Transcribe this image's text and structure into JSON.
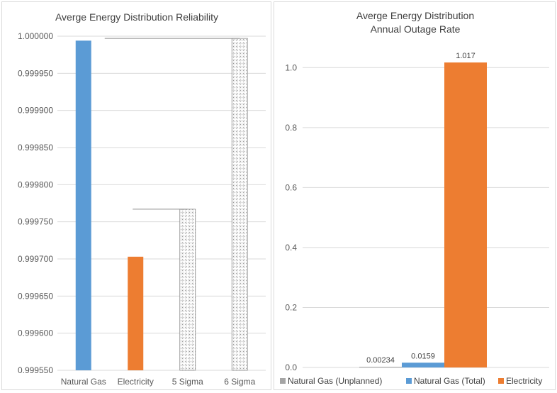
{
  "chart_data": [
    {
      "type": "bar",
      "title": "Averge Energy Distribution Reliability",
      "categories": [
        "Natural Gas",
        "Electricity",
        "5 Sigma",
        "6 Sigma"
      ],
      "values": [
        0.999994,
        0.999703,
        0.999767,
        0.999997
      ],
      "ylim": [
        0.99955,
        1.0
      ],
      "yticks": [
        "0.999550",
        "0.999600",
        "0.999650",
        "0.999700",
        "0.999750",
        "0.999800",
        "0.999850",
        "0.999900",
        "0.999950",
        "1.000000"
      ],
      "bar_colors": [
        "#5b9bd5",
        "#ed7d31",
        "pattern",
        "pattern"
      ],
      "grid": true
    },
    {
      "type": "bar",
      "title_lines": [
        "Averge Energy Distribution",
        "Annual Outage Rate"
      ],
      "series": [
        {
          "name": "Natural Gas (Unplanned)",
          "value": 0.00234,
          "label": "0.00234",
          "color": "#a5a5a5"
        },
        {
          "name": "Natural Gas (Total)",
          "value": 0.0159,
          "label": "0.0159",
          "color": "#5b9bd5"
        },
        {
          "name": "Electricity",
          "value": 1.017,
          "label": "1.017",
          "color": "#ed7d31"
        }
      ],
      "ylim": [
        0,
        1.1
      ],
      "yticks": [
        "0.0",
        "0.2",
        "0.4",
        "0.6",
        "0.8",
        "1.0"
      ],
      "legend_position": "bottom",
      "grid": true
    }
  ]
}
